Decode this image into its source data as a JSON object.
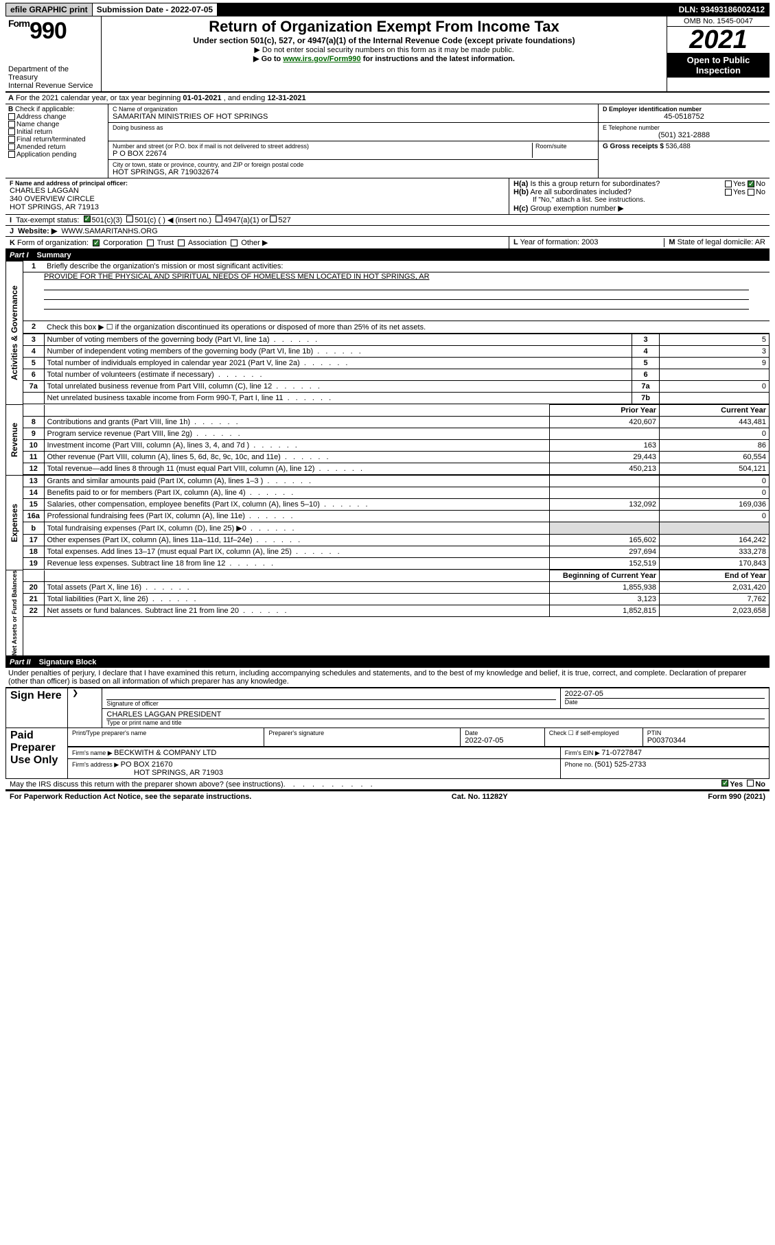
{
  "topbar": {
    "efile": "efile GRAPHIC print",
    "subdate_lbl": "Submission Date - ",
    "subdate": "2022-07-05",
    "dln_lbl": "DLN: ",
    "dln": "93493186002412"
  },
  "hdr": {
    "form_prefix": "Form",
    "form_num": "990",
    "dept": "Department of the Treasury",
    "irs": "Internal Revenue Service",
    "title": "Return of Organization Exempt From Income Tax",
    "sub1": "Under section 501(c), 527, or 4947(a)(1) of the Internal Revenue Code (except private foundations)",
    "sub2": "▶ Do not enter social security numbers on this form as it may be made public.",
    "sub3_a": "▶ Go to ",
    "sub3_link": "www.irs.gov/Form990",
    "sub3_b": " for instructions and the latest information.",
    "omb": "OMB No. 1545-0047",
    "year": "2021",
    "badge1": "Open to Public",
    "badge2": "Inspection"
  },
  "A": {
    "text_a": "For the 2021 calendar year, or tax year beginning ",
    "beg": "01-01-2021",
    "text_b": " , and ending ",
    "end": "12-31-2021"
  },
  "B": {
    "hdr": "Check if applicable:",
    "opts": [
      "Address change",
      "Name change",
      "Initial return",
      "Final return/terminated",
      "Amended return",
      "Application pending"
    ]
  },
  "C": {
    "name_lbl": "C Name of organization",
    "name": "SAMARITAN MINISTRIES OF HOT SPRINGS",
    "dba_lbl": "Doing business as",
    "street_lbl": "Number and street (or P.O. box if mail is not delivered to street address)",
    "room_lbl": "Room/suite",
    "street": "P O BOX 22674",
    "city_lbl": "City or town, state or province, country, and ZIP or foreign postal code",
    "city": "HOT SPRINGS, AR  719032674"
  },
  "D": {
    "lbl": "D Employer identification number",
    "val": "45-0518752"
  },
  "E": {
    "lbl": "E Telephone number",
    "val": "(501) 321-2888"
  },
  "G": {
    "lbl": "G Gross receipts $ ",
    "val": "536,488"
  },
  "F": {
    "lbl": "F  Name and address of principal officer:",
    "name": "CHARLES LAGGAN",
    "addr1": "340 OVERVIEW CIRCLE",
    "addr2": "HOT SPRINGS, AR  71913"
  },
  "H": {
    "a": "Is this a group return for subordinates?",
    "b": "Are all subordinates included?",
    "note": "If \"No,\" attach a list. See instructions.",
    "c": "Group exemption number ▶",
    "yes": "Yes",
    "no": "No"
  },
  "I": {
    "lbl": "Tax-exempt status:",
    "o1": "501(c)(3)",
    "o2": "501(c) (   ) ◀ (insert no.)",
    "o3": "4947(a)(1) or",
    "o4": "527"
  },
  "J": {
    "lbl": "Website: ▶",
    "val": "WWW.SAMARITANHS.ORG"
  },
  "K": {
    "lbl": "Form of organization:",
    "o1": "Corporation",
    "o2": "Trust",
    "o3": "Association",
    "o4": "Other ▶"
  },
  "L": {
    "lbl": "Year of formation: ",
    "val": "2003"
  },
  "M": {
    "lbl": "State of legal domicile: ",
    "val": "AR"
  },
  "part1": {
    "hdr": "Part I",
    "title": "Summary",
    "vtabs": [
      "Activities & Governance",
      "Revenue",
      "Expenses",
      "Net Assets or Fund Balances"
    ],
    "l1_lbl": "Briefly describe the organization's mission or most significant activities:",
    "l1_val": "PROVIDE FOR THE PHYSICAL AND SPIRITUAL NEEDS OF HOMELESS MEN LOCATED IN HOT SPRINGS, AR",
    "l2": "Check this box ▶ ☐  if the organization discontinued its operations or disposed of more than 25% of its net assets.",
    "col_py": "Prior Year",
    "col_cy": "Current Year",
    "col_bcy": "Beginning of Current Year",
    "col_eoy": "End of Year",
    "rows_act": [
      {
        "n": "3",
        "t": "Number of voting members of the governing body (Part VI, line 1a)",
        "box": "3",
        "v": "5"
      },
      {
        "n": "4",
        "t": "Number of independent voting members of the governing body (Part VI, line 1b)",
        "box": "4",
        "v": "3"
      },
      {
        "n": "5",
        "t": "Total number of individuals employed in calendar year 2021 (Part V, line 2a)",
        "box": "5",
        "v": "9"
      },
      {
        "n": "6",
        "t": "Total number of volunteers (estimate if necessary)",
        "box": "6",
        "v": ""
      },
      {
        "n": "7a",
        "t": "Total unrelated business revenue from Part VIII, column (C), line 12",
        "box": "7a",
        "v": "0"
      },
      {
        "n": "",
        "t": "Net unrelated business taxable income from Form 990-T, Part I, line 11",
        "box": "7b",
        "v": ""
      }
    ],
    "rows_rev": [
      {
        "n": "8",
        "t": "Contributions and grants (Part VIII, line 1h)",
        "py": "420,607",
        "cy": "443,481"
      },
      {
        "n": "9",
        "t": "Program service revenue (Part VIII, line 2g)",
        "py": "",
        "cy": "0"
      },
      {
        "n": "10",
        "t": "Investment income (Part VIII, column (A), lines 3, 4, and 7d )",
        "py": "163",
        "cy": "86"
      },
      {
        "n": "11",
        "t": "Other revenue (Part VIII, column (A), lines 5, 6d, 8c, 9c, 10c, and 11e)",
        "py": "29,443",
        "cy": "60,554"
      },
      {
        "n": "12",
        "t": "Total revenue—add lines 8 through 11 (must equal Part VIII, column (A), line 12)",
        "py": "450,213",
        "cy": "504,121"
      }
    ],
    "rows_exp": [
      {
        "n": "13",
        "t": "Grants and similar amounts paid (Part IX, column (A), lines 1–3 )",
        "py": "",
        "cy": "0"
      },
      {
        "n": "14",
        "t": "Benefits paid to or for members (Part IX, column (A), line 4)",
        "py": "",
        "cy": "0"
      },
      {
        "n": "15",
        "t": "Salaries, other compensation, employee benefits (Part IX, column (A), lines 5–10)",
        "py": "132,092",
        "cy": "169,036"
      },
      {
        "n": "16a",
        "t": "Professional fundraising fees (Part IX, column (A), line 11e)",
        "py": "",
        "cy": "0"
      },
      {
        "n": "b",
        "t": "Total fundraising expenses (Part IX, column (D), line 25) ▶0",
        "py": "",
        "cy": ""
      },
      {
        "n": "17",
        "t": "Other expenses (Part IX, column (A), lines 11a–11d, 11f–24e)",
        "py": "165,602",
        "cy": "164,242"
      },
      {
        "n": "18",
        "t": "Total expenses. Add lines 13–17 (must equal Part IX, column (A), line 25)",
        "py": "297,694",
        "cy": "333,278"
      },
      {
        "n": "19",
        "t": "Revenue less expenses. Subtract line 18 from line 12",
        "py": "152,519",
        "cy": "170,843"
      }
    ],
    "rows_net": [
      {
        "n": "20",
        "t": "Total assets (Part X, line 16)",
        "py": "1,855,938",
        "cy": "2,031,420"
      },
      {
        "n": "21",
        "t": "Total liabilities (Part X, line 26)",
        "py": "3,123",
        "cy": "7,762"
      },
      {
        "n": "22",
        "t": "Net assets or fund balances. Subtract line 21 from line 20",
        "py": "1,852,815",
        "cy": "2,023,658"
      }
    ]
  },
  "part2": {
    "hdr": "Part II",
    "title": "Signature Block",
    "pen": "Under penalties of perjury, I declare that I have examined this return, including accompanying schedules and statements, and to the best of my knowledge and belief, it is true, correct, and complete. Declaration of preparer (other than officer) is based on all information of which preparer has any knowledge.",
    "sign_here": "Sign Here",
    "sig_officer": "Signature of officer",
    "date_lbl": "Date",
    "date": "2022-07-05",
    "name": "CHARLES LAGGAN  PRESIDENT",
    "name_lbl": "Type or print name and title",
    "paid": "Paid Preparer Use Only",
    "pcol1": "Print/Type preparer's name",
    "pcol2": "Preparer's signature",
    "pcol3": "Date",
    "pdate": "2022-07-05",
    "pcol4a": "Check ☐ if self-employed",
    "pcol5": "PTIN",
    "ptin": "P00370344",
    "firm_name_lbl": "Firm's name      ▶ ",
    "firm_name": "BECKWITH & COMPANY LTD",
    "firm_ein_lbl": "Firm's EIN ▶ ",
    "firm_ein": "71-0727847",
    "firm_addr_lbl": "Firm's address ▶ ",
    "firm_addr1": "PO BOX 21670",
    "firm_addr2": "HOT SPRINGS, AR  71903",
    "phone_lbl": "Phone no. ",
    "phone": "(501) 525-2733",
    "discuss": "May the IRS discuss this return with the preparer shown above? (see instructions)"
  },
  "foot": {
    "left": "For Paperwork Reduction Act Notice, see the separate instructions.",
    "mid": "Cat. No. 11282Y",
    "right": "Form 990 (2021)"
  }
}
